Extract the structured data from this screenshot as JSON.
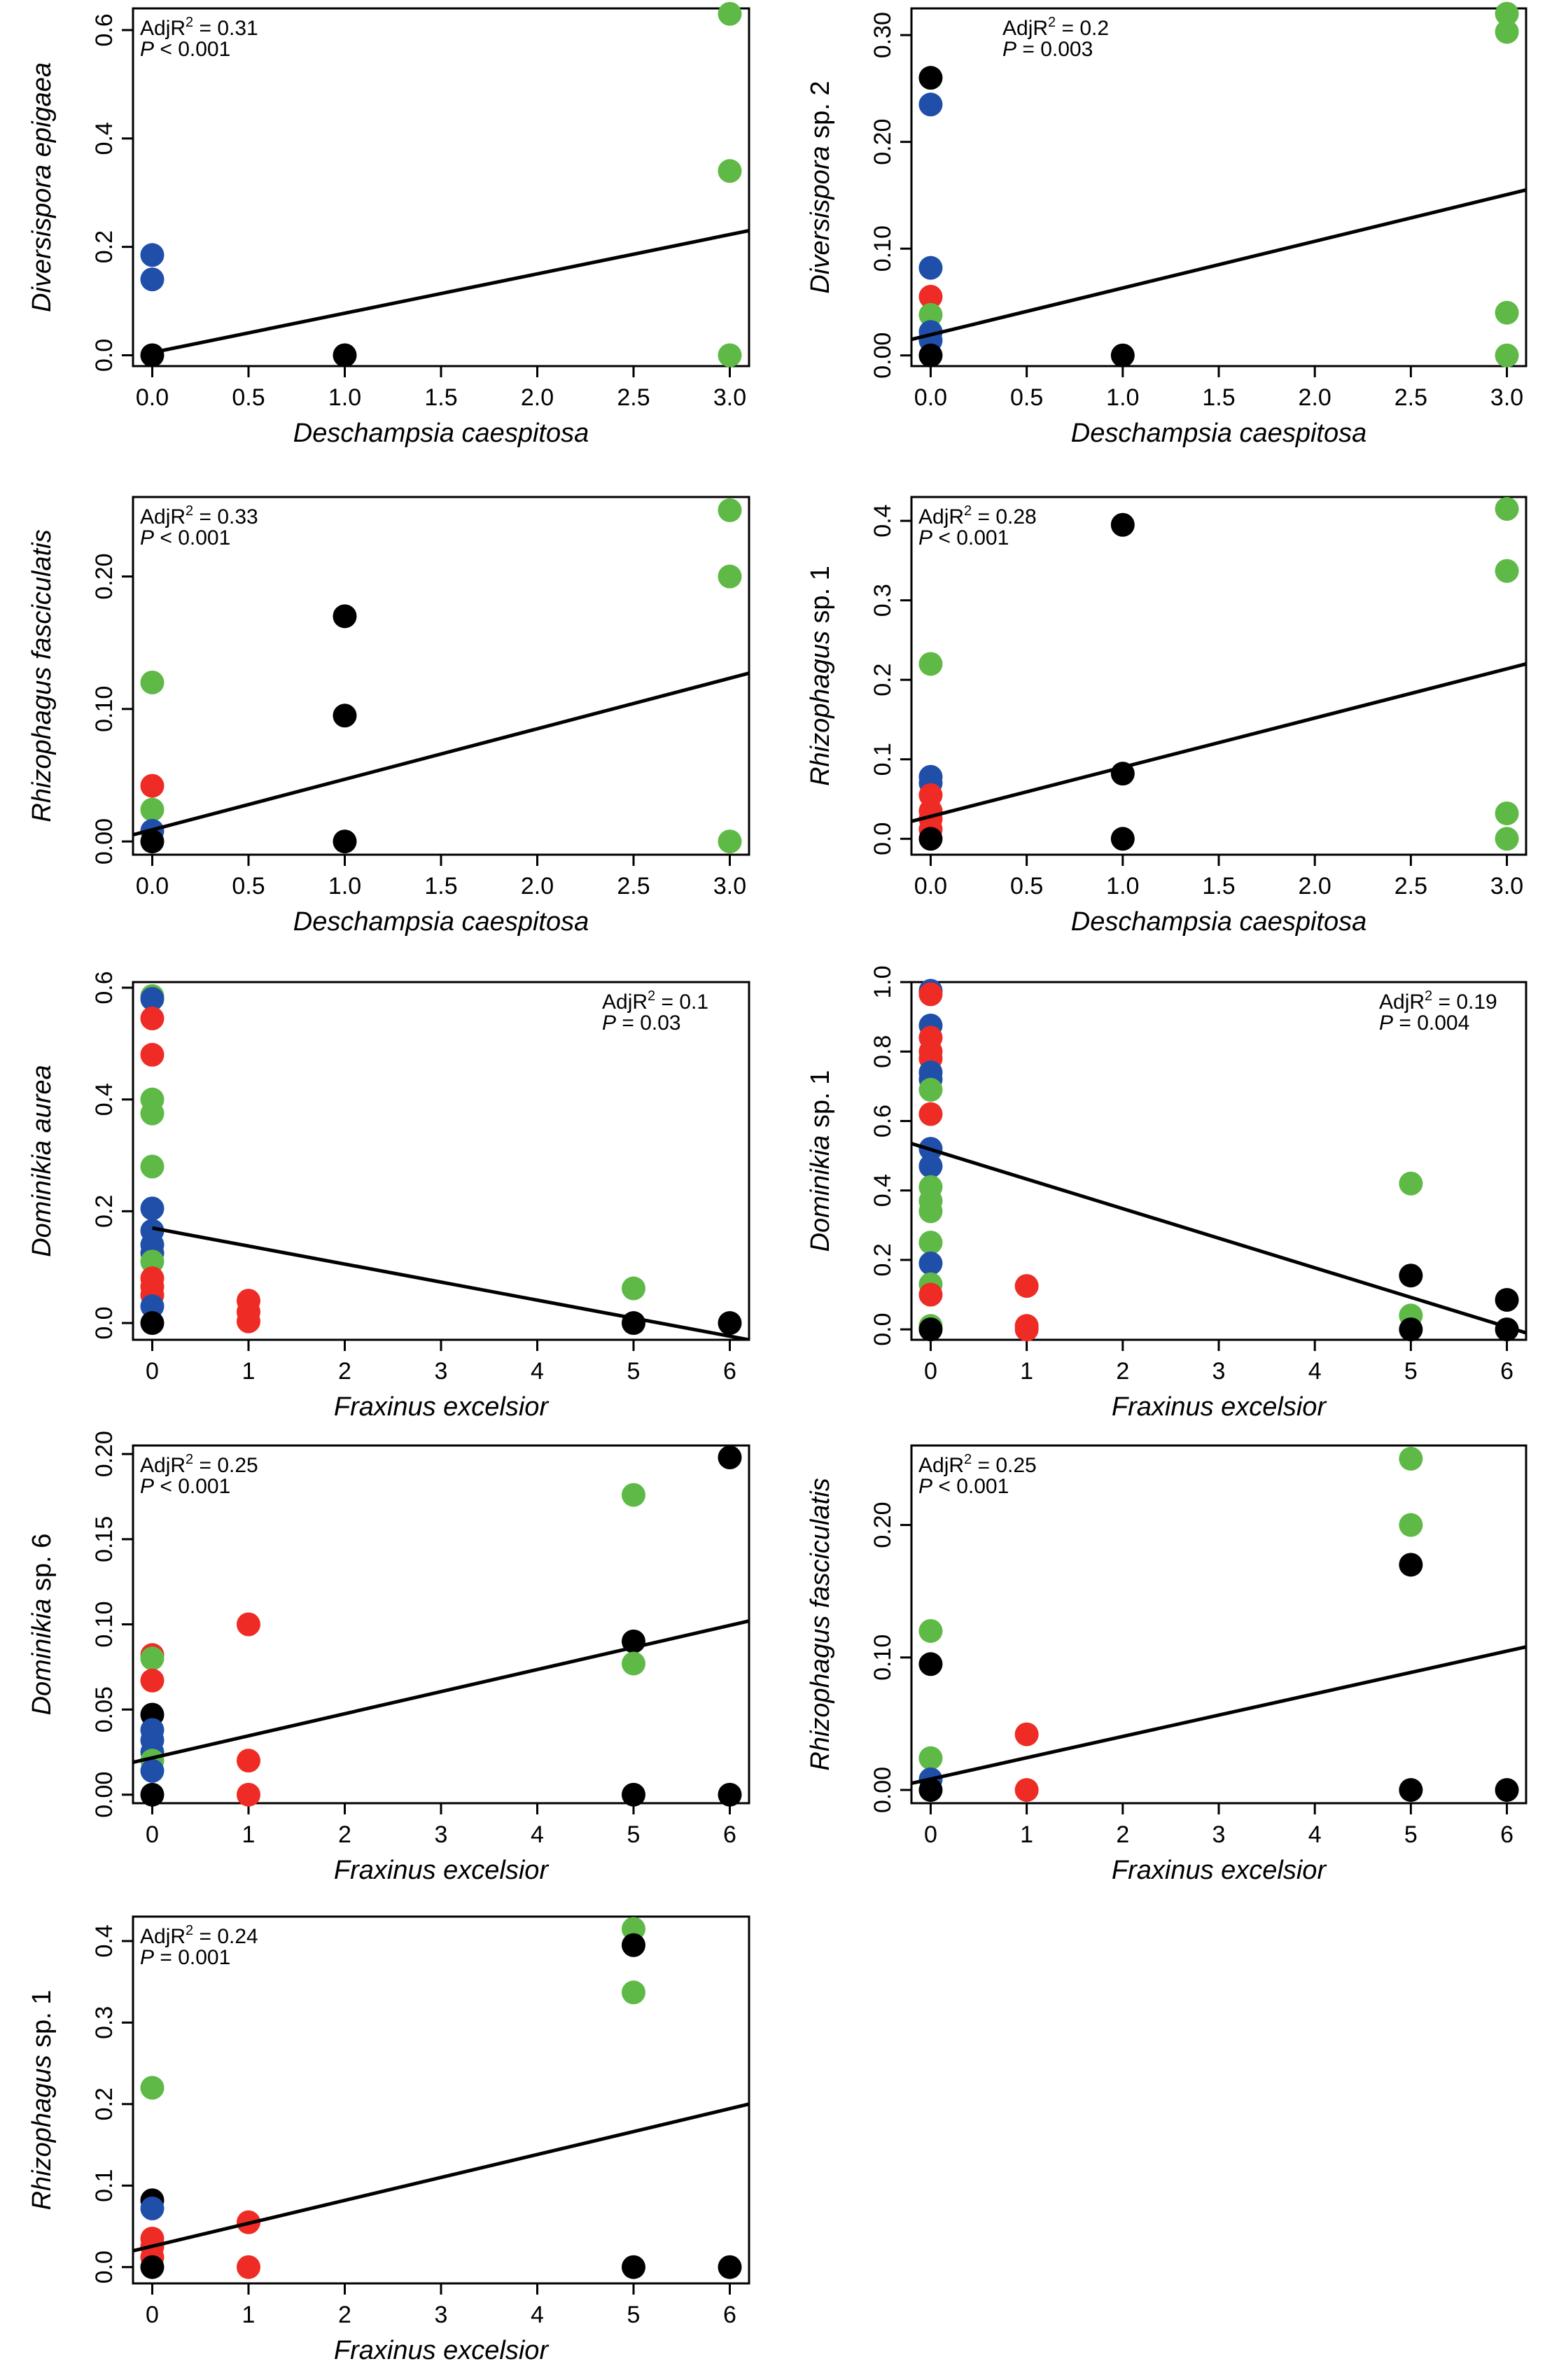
{
  "colors": {
    "blue": "#1f4fa8",
    "red": "#ee2b24",
    "green": "#5fb946",
    "black": "#000000"
  },
  "chart_data": [
    {
      "type": "scatter",
      "xlabel": "Deschampsia caespitosa",
      "ylabel": {
        "italic": "Diversispora epigaea",
        "plain": ""
      },
      "xlim": [
        -0.1,
        3.1
      ],
      "ylim": [
        -0.02,
        0.64
      ],
      "xticks": [
        "0.0",
        "0.5",
        "1.0",
        "1.5",
        "2.0",
        "2.5",
        "3.0"
      ],
      "yticks": [
        "0.0",
        "0.2",
        "0.4",
        "0.6"
      ],
      "stat": {
        "r2_label": "AdjR",
        "r2_sup": "2",
        "r2_value": " = 0.31",
        "p_label": "P",
        "p_value": " < 0.001"
      },
      "stat_pos": "top-left",
      "points": [
        {
          "x": 0,
          "y": 0.185,
          "c": "blue"
        },
        {
          "x": 0,
          "y": 0.14,
          "c": "blue"
        },
        {
          "x": 0,
          "y": 0,
          "c": "black"
        },
        {
          "x": 1,
          "y": 0,
          "c": "black"
        },
        {
          "x": 3,
          "y": 0.63,
          "c": "green"
        },
        {
          "x": 3,
          "y": 0.34,
          "c": "green"
        },
        {
          "x": 3,
          "y": 0,
          "c": "green"
        }
      ],
      "fit": {
        "x0": 0,
        "y0": 0.005,
        "x1": 3.1,
        "y1": 0.23
      }
    },
    {
      "type": "scatter",
      "xlabel": "Deschampsia caespitosa",
      "ylabel": {
        "italic": "Diversispora",
        "plain": " sp. 2"
      },
      "xlim": [
        -0.1,
        3.1
      ],
      "ylim": [
        -0.01,
        0.325
      ],
      "xticks": [
        "0.0",
        "0.5",
        "1.0",
        "1.5",
        "2.0",
        "2.5",
        "3.0"
      ],
      "yticks": [
        "0.00",
        "0.10",
        "0.20",
        "0.30"
      ],
      "stat": {
        "r2_label": "AdjR",
        "r2_sup": "2",
        "r2_value": " = 0.2",
        "p_label": "P",
        "p_value": " = 0.003"
      },
      "stat_pos": "top-center",
      "points": [
        {
          "x": 0,
          "y": 0.26,
          "c": "black"
        },
        {
          "x": 0,
          "y": 0.235,
          "c": "blue"
        },
        {
          "x": 0,
          "y": 0.082,
          "c": "blue"
        },
        {
          "x": 0,
          "y": 0.055,
          "c": "red"
        },
        {
          "x": 0,
          "y": 0.038,
          "c": "green"
        },
        {
          "x": 0,
          "y": 0.022,
          "c": "blue"
        },
        {
          "x": 0,
          "y": 0.014,
          "c": "blue"
        },
        {
          "x": 0,
          "y": 0,
          "c": "black"
        },
        {
          "x": 1,
          "y": 0,
          "c": "black"
        },
        {
          "x": 3,
          "y": 0.32,
          "c": "green"
        },
        {
          "x": 3,
          "y": 0.303,
          "c": "green"
        },
        {
          "x": 3,
          "y": 0.04,
          "c": "green"
        },
        {
          "x": 3,
          "y": 0,
          "c": "green"
        }
      ],
      "fit": {
        "x0": -0.1,
        "y0": 0.015,
        "x1": 3.1,
        "y1": 0.155
      }
    },
    {
      "type": "scatter",
      "xlabel": "Deschampsia caespitosa",
      "ylabel": {
        "italic": "Rhizophagus fasciculatis",
        "plain": ""
      },
      "xlim": [
        -0.1,
        3.1
      ],
      "ylim": [
        -0.01,
        0.26
      ],
      "xticks": [
        "0.0",
        "0.5",
        "1.0",
        "1.5",
        "2.0",
        "2.5",
        "3.0"
      ],
      "yticks": [
        "0.00",
        "0.10",
        "0.20"
      ],
      "stat": {
        "r2_label": "AdjR",
        "r2_sup": "2",
        "r2_value": " = 0.33",
        "p_label": "P",
        "p_value": " < 0.001"
      },
      "stat_pos": "top-left",
      "points": [
        {
          "x": 0,
          "y": 0.12,
          "c": "green"
        },
        {
          "x": 0,
          "y": 0.042,
          "c": "red"
        },
        {
          "x": 0,
          "y": 0.024,
          "c": "green"
        },
        {
          "x": 0,
          "y": 0.008,
          "c": "blue"
        },
        {
          "x": 0,
          "y": 0,
          "c": "black"
        },
        {
          "x": 1,
          "y": 0.17,
          "c": "black"
        },
        {
          "x": 1,
          "y": 0.095,
          "c": "black"
        },
        {
          "x": 1,
          "y": 0,
          "c": "black"
        },
        {
          "x": 3,
          "y": 0.25,
          "c": "green"
        },
        {
          "x": 3,
          "y": 0.2,
          "c": "green"
        },
        {
          "x": 3,
          "y": 0,
          "c": "green"
        }
      ],
      "fit": {
        "x0": -0.1,
        "y0": 0.005,
        "x1": 3.1,
        "y1": 0.127
      }
    },
    {
      "type": "scatter",
      "xlabel": "Deschampsia caespitosa",
      "ylabel": {
        "italic": "Rhizophagus",
        "plain": " sp. 1"
      },
      "xlim": [
        -0.1,
        3.1
      ],
      "ylim": [
        -0.02,
        0.43
      ],
      "xticks": [
        "0.0",
        "0.5",
        "1.0",
        "1.5",
        "2.0",
        "2.5",
        "3.0"
      ],
      "yticks": [
        "0.0",
        "0.1",
        "0.2",
        "0.3",
        "0.4"
      ],
      "stat": {
        "r2_label": "AdjR",
        "r2_sup": "2",
        "r2_value": " = 0.28",
        "p_label": "P",
        "p_value": " < 0.001"
      },
      "stat_pos": "top-left",
      "points": [
        {
          "x": 0,
          "y": 0.22,
          "c": "green"
        },
        {
          "x": 0,
          "y": 0.078,
          "c": "blue"
        },
        {
          "x": 0,
          "y": 0.07,
          "c": "blue"
        },
        {
          "x": 0,
          "y": 0.055,
          "c": "red"
        },
        {
          "x": 0,
          "y": 0.035,
          "c": "red"
        },
        {
          "x": 0,
          "y": 0.025,
          "c": "red"
        },
        {
          "x": 0,
          "y": 0.012,
          "c": "red"
        },
        {
          "x": 0,
          "y": 0,
          "c": "black"
        },
        {
          "x": 1,
          "y": 0.395,
          "c": "black"
        },
        {
          "x": 1,
          "y": 0.082,
          "c": "black"
        },
        {
          "x": 1,
          "y": 0,
          "c": "black"
        },
        {
          "x": 3,
          "y": 0.415,
          "c": "green"
        },
        {
          "x": 3,
          "y": 0.337,
          "c": "green"
        },
        {
          "x": 3,
          "y": 0.032,
          "c": "green"
        },
        {
          "x": 3,
          "y": 0,
          "c": "green"
        }
      ],
      "fit": {
        "x0": -0.1,
        "y0": 0.022,
        "x1": 3.1,
        "y1": 0.22
      }
    },
    {
      "type": "scatter",
      "xlabel": "Fraxinus excelsior",
      "ylabel": {
        "italic": "Dominikia aurea",
        "plain": ""
      },
      "xlim": [
        -0.2,
        6.2
      ],
      "ylim": [
        -0.03,
        0.61
      ],
      "xticks": [
        "0",
        "1",
        "2",
        "3",
        "4",
        "5",
        "6"
      ],
      "yticks": [
        "0.0",
        "0.2",
        "0.4",
        "0.6"
      ],
      "stat": {
        "r2_label": "AdjR",
        "r2_sup": "2",
        "r2_value": " = 0.1",
        "p_label": "P",
        "p_value": " = 0.03"
      },
      "stat_pos": "top-right",
      "points": [
        {
          "x": 0,
          "y": 0.585,
          "c": "green"
        },
        {
          "x": 0,
          "y": 0.58,
          "c": "blue"
        },
        {
          "x": 0,
          "y": 0.545,
          "c": "red"
        },
        {
          "x": 0,
          "y": 0.48,
          "c": "red"
        },
        {
          "x": 0,
          "y": 0.4,
          "c": "green"
        },
        {
          "x": 0,
          "y": 0.375,
          "c": "green"
        },
        {
          "x": 0,
          "y": 0.28,
          "c": "green"
        },
        {
          "x": 0,
          "y": 0.205,
          "c": "blue"
        },
        {
          "x": 0,
          "y": 0.165,
          "c": "blue"
        },
        {
          "x": 0,
          "y": 0.14,
          "c": "blue"
        },
        {
          "x": 0,
          "y": 0.125,
          "c": "blue"
        },
        {
          "x": 0,
          "y": 0.11,
          "c": "green"
        },
        {
          "x": 0,
          "y": 0.08,
          "c": "red"
        },
        {
          "x": 0,
          "y": 0.065,
          "c": "red"
        },
        {
          "x": 0,
          "y": 0.05,
          "c": "red"
        },
        {
          "x": 0,
          "y": 0.03,
          "c": "blue"
        },
        {
          "x": 0,
          "y": 0,
          "c": "black"
        },
        {
          "x": 1,
          "y": 0.04,
          "c": "red"
        },
        {
          "x": 1,
          "y": 0.02,
          "c": "red"
        },
        {
          "x": 1,
          "y": 0.003,
          "c": "red"
        },
        {
          "x": 5,
          "y": 0.062,
          "c": "green"
        },
        {
          "x": 5,
          "y": 0,
          "c": "black"
        },
        {
          "x": 6,
          "y": 0,
          "c": "black"
        }
      ],
      "fit": {
        "x0": 0,
        "y0": 0.17,
        "x1": 6.2,
        "y1": -0.03
      }
    },
    {
      "type": "scatter",
      "xlabel": "Fraxinus excelsior",
      "ylabel": {
        "italic": "Dominikia",
        "plain": " sp. 1"
      },
      "xlim": [
        -0.2,
        6.2
      ],
      "ylim": [
        -0.03,
        1.0
      ],
      "xticks": [
        "0",
        "1",
        "2",
        "3",
        "4",
        "5",
        "6"
      ],
      "yticks": [
        "0.0",
        "0.2",
        "0.4",
        "0.6",
        "0.8",
        "1.0"
      ],
      "stat": {
        "r2_label": "AdjR",
        "r2_sup": "2",
        "r2_value": " = 0.19",
        "p_label": "P",
        "p_value": " = 0.004"
      },
      "stat_pos": "top-right",
      "points": [
        {
          "x": 0,
          "y": 0.975,
          "c": "blue"
        },
        {
          "x": 0,
          "y": 0.965,
          "c": "red"
        },
        {
          "x": 0,
          "y": 0.875,
          "c": "blue"
        },
        {
          "x": 0,
          "y": 0.84,
          "c": "red"
        },
        {
          "x": 0,
          "y": 0.8,
          "c": "red"
        },
        {
          "x": 0,
          "y": 0.78,
          "c": "red"
        },
        {
          "x": 0,
          "y": 0.74,
          "c": "blue"
        },
        {
          "x": 0,
          "y": 0.72,
          "c": "blue"
        },
        {
          "x": 0,
          "y": 0.69,
          "c": "green"
        },
        {
          "x": 0,
          "y": 0.62,
          "c": "red"
        },
        {
          "x": 0,
          "y": 0.52,
          "c": "blue"
        },
        {
          "x": 0,
          "y": 0.47,
          "c": "blue"
        },
        {
          "x": 0,
          "y": 0.41,
          "c": "green"
        },
        {
          "x": 0,
          "y": 0.37,
          "c": "green"
        },
        {
          "x": 0,
          "y": 0.34,
          "c": "green"
        },
        {
          "x": 0,
          "y": 0.25,
          "c": "green"
        },
        {
          "x": 0,
          "y": 0.19,
          "c": "blue"
        },
        {
          "x": 0,
          "y": 0.13,
          "c": "green"
        },
        {
          "x": 0,
          "y": 0.1,
          "c": "red"
        },
        {
          "x": 0,
          "y": 0.01,
          "c": "green"
        },
        {
          "x": 0,
          "y": 0,
          "c": "black"
        },
        {
          "x": 1,
          "y": 0.125,
          "c": "red"
        },
        {
          "x": 1,
          "y": 0.01,
          "c": "red"
        },
        {
          "x": 1,
          "y": 0,
          "c": "red"
        },
        {
          "x": 5,
          "y": 0.42,
          "c": "green"
        },
        {
          "x": 5,
          "y": 0.155,
          "c": "black"
        },
        {
          "x": 5,
          "y": 0.04,
          "c": "green"
        },
        {
          "x": 5,
          "y": 0,
          "c": "black"
        },
        {
          "x": 6,
          "y": 0.085,
          "c": "black"
        },
        {
          "x": 6,
          "y": 0,
          "c": "black"
        }
      ],
      "fit": {
        "x0": -0.2,
        "y0": 0.535,
        "x1": 6.2,
        "y1": -0.01
      }
    },
    {
      "type": "scatter",
      "xlabel": "Fraxinus excelsior",
      "ylabel": {
        "italic": "Dominikia",
        "plain": " sp. 6"
      },
      "xlim": [
        -0.2,
        6.2
      ],
      "ylim": [
        -0.005,
        0.205
      ],
      "xticks": [
        "0",
        "1",
        "2",
        "3",
        "4",
        "5",
        "6"
      ],
      "yticks": [
        "0.00",
        "0.05",
        "0.10",
        "0.15",
        "0.20"
      ],
      "stat": {
        "r2_label": "AdjR",
        "r2_sup": "2",
        "r2_value": " = 0.25",
        "p_label": "P",
        "p_value": " < 0.001"
      },
      "stat_pos": "top-left",
      "points": [
        {
          "x": 0,
          "y": 0.082,
          "c": "red"
        },
        {
          "x": 0,
          "y": 0.08,
          "c": "green"
        },
        {
          "x": 0,
          "y": 0.067,
          "c": "red"
        },
        {
          "x": 0,
          "y": 0.047,
          "c": "black"
        },
        {
          "x": 0,
          "y": 0.038,
          "c": "blue"
        },
        {
          "x": 0,
          "y": 0.032,
          "c": "blue"
        },
        {
          "x": 0,
          "y": 0.025,
          "c": "blue"
        },
        {
          "x": 0,
          "y": 0.02,
          "c": "green"
        },
        {
          "x": 0,
          "y": 0.014,
          "c": "blue"
        },
        {
          "x": 0,
          "y": 0,
          "c": "black"
        },
        {
          "x": 1,
          "y": 0.1,
          "c": "red"
        },
        {
          "x": 1,
          "y": 0.02,
          "c": "red"
        },
        {
          "x": 1,
          "y": 0,
          "c": "red"
        },
        {
          "x": 5,
          "y": 0.176,
          "c": "green"
        },
        {
          "x": 5,
          "y": 0.09,
          "c": "black"
        },
        {
          "x": 5,
          "y": 0.077,
          "c": "green"
        },
        {
          "x": 5,
          "y": 0,
          "c": "black"
        },
        {
          "x": 6,
          "y": 0.198,
          "c": "black"
        },
        {
          "x": 6,
          "y": 0,
          "c": "black"
        }
      ],
      "fit": {
        "x0": -0.2,
        "y0": 0.019,
        "x1": 6.2,
        "y1": 0.102
      }
    },
    {
      "type": "scatter",
      "xlabel": "Fraxinus excelsior",
      "ylabel": {
        "italic": "Rhizophagus fasciculatis",
        "plain": ""
      },
      "xlim": [
        -0.2,
        6.2
      ],
      "ylim": [
        -0.01,
        0.26
      ],
      "xticks": [
        "0",
        "1",
        "2",
        "3",
        "4",
        "5",
        "6"
      ],
      "yticks": [
        "0.00",
        "0.10",
        "0.20"
      ],
      "stat": {
        "r2_label": "AdjR",
        "r2_sup": "2",
        "r2_value": " = 0.25",
        "p_label": "P",
        "p_value": " < 0.001"
      },
      "stat_pos": "top-left",
      "points": [
        {
          "x": 0,
          "y": 0.12,
          "c": "green"
        },
        {
          "x": 0,
          "y": 0.095,
          "c": "black"
        },
        {
          "x": 0,
          "y": 0.024,
          "c": "green"
        },
        {
          "x": 0,
          "y": 0.008,
          "c": "blue"
        },
        {
          "x": 0,
          "y": 0,
          "c": "black"
        },
        {
          "x": 1,
          "y": 0.042,
          "c": "red"
        },
        {
          "x": 1,
          "y": 0,
          "c": "red"
        },
        {
          "x": 5,
          "y": 0.25,
          "c": "green"
        },
        {
          "x": 5,
          "y": 0.2,
          "c": "green"
        },
        {
          "x": 5,
          "y": 0.17,
          "c": "black"
        },
        {
          "x": 5,
          "y": 0,
          "c": "black"
        },
        {
          "x": 6,
          "y": 0,
          "c": "black"
        }
      ],
      "fit": {
        "x0": -0.2,
        "y0": 0.005,
        "x1": 6.2,
        "y1": 0.108
      }
    },
    {
      "type": "scatter",
      "xlabel": "Fraxinus excelsior",
      "ylabel": {
        "italic": "Rhizophagus",
        "plain": " sp. 1"
      },
      "xlim": [
        -0.2,
        6.2
      ],
      "ylim": [
        -0.02,
        0.43
      ],
      "xticks": [
        "0",
        "1",
        "2",
        "3",
        "4",
        "5",
        "6"
      ],
      "yticks": [
        "0.0",
        "0.1",
        "0.2",
        "0.3",
        "0.4"
      ],
      "stat": {
        "r2_label": "AdjR",
        "r2_sup": "2",
        "r2_value": " = 0.24",
        "p_label": "P",
        "p_value": " = 0.001"
      },
      "stat_pos": "top-left",
      "points": [
        {
          "x": 0,
          "y": 0.22,
          "c": "green"
        },
        {
          "x": 0,
          "y": 0.082,
          "c": "black"
        },
        {
          "x": 0,
          "y": 0.072,
          "c": "blue"
        },
        {
          "x": 0,
          "y": 0.035,
          "c": "red"
        },
        {
          "x": 0,
          "y": 0.025,
          "c": "red"
        },
        {
          "x": 0,
          "y": 0.012,
          "c": "red"
        },
        {
          "x": 0,
          "y": 0,
          "c": "black"
        },
        {
          "x": 1,
          "y": 0.055,
          "c": "red"
        },
        {
          "x": 1,
          "y": 0,
          "c": "red"
        },
        {
          "x": 5,
          "y": 0.415,
          "c": "green"
        },
        {
          "x": 5,
          "y": 0.395,
          "c": "black"
        },
        {
          "x": 5,
          "y": 0.337,
          "c": "green"
        },
        {
          "x": 5,
          "y": 0,
          "c": "black"
        },
        {
          "x": 6,
          "y": 0,
          "c": "black"
        }
      ],
      "fit": {
        "x0": -0.2,
        "y0": 0.02,
        "x1": 6.2,
        "y1": 0.2
      }
    }
  ]
}
